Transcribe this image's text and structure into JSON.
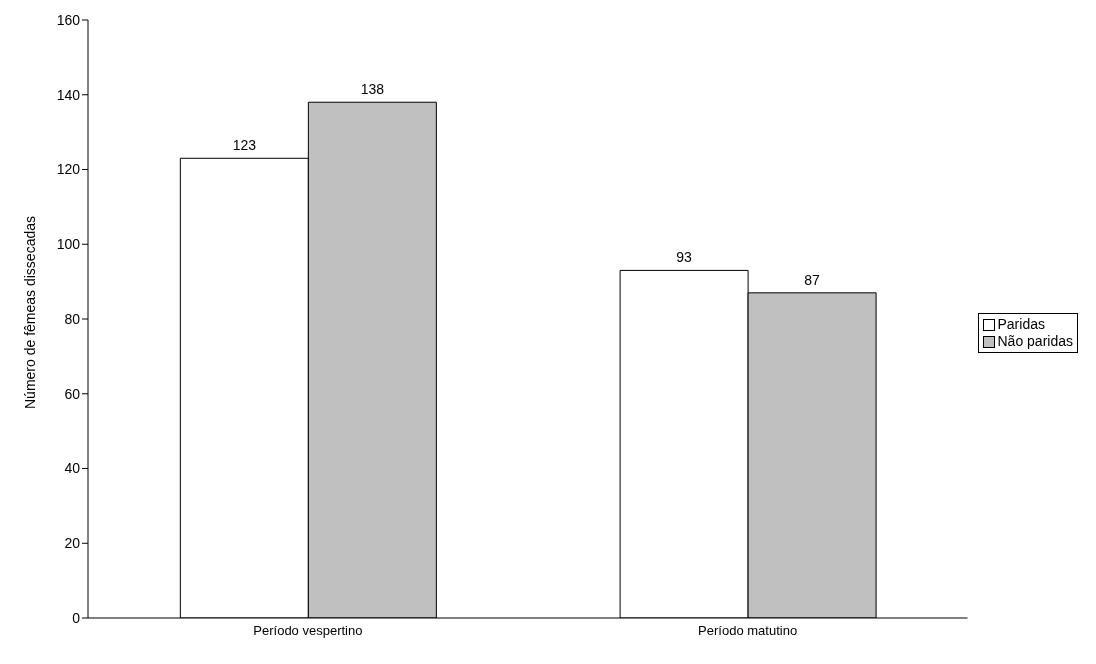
{
  "chart_data": {
    "type": "bar",
    "ylabel": "Número de fêmeas dissecadas",
    "categories": [
      "Período vespertino",
      "Período matutino"
    ],
    "series": [
      {
        "name": "Paridas",
        "color": "#ffffff",
        "values": [
          123,
          93
        ]
      },
      {
        "name": "Não paridas",
        "color": "#c0c0c0",
        "values": [
          138,
          87
        ]
      }
    ],
    "ylim": [
      0,
      160
    ],
    "yticks": [
      0,
      20,
      40,
      60,
      80,
      100,
      120,
      140,
      160
    ],
    "grid": false,
    "legend": "right",
    "data_labels": true
  }
}
